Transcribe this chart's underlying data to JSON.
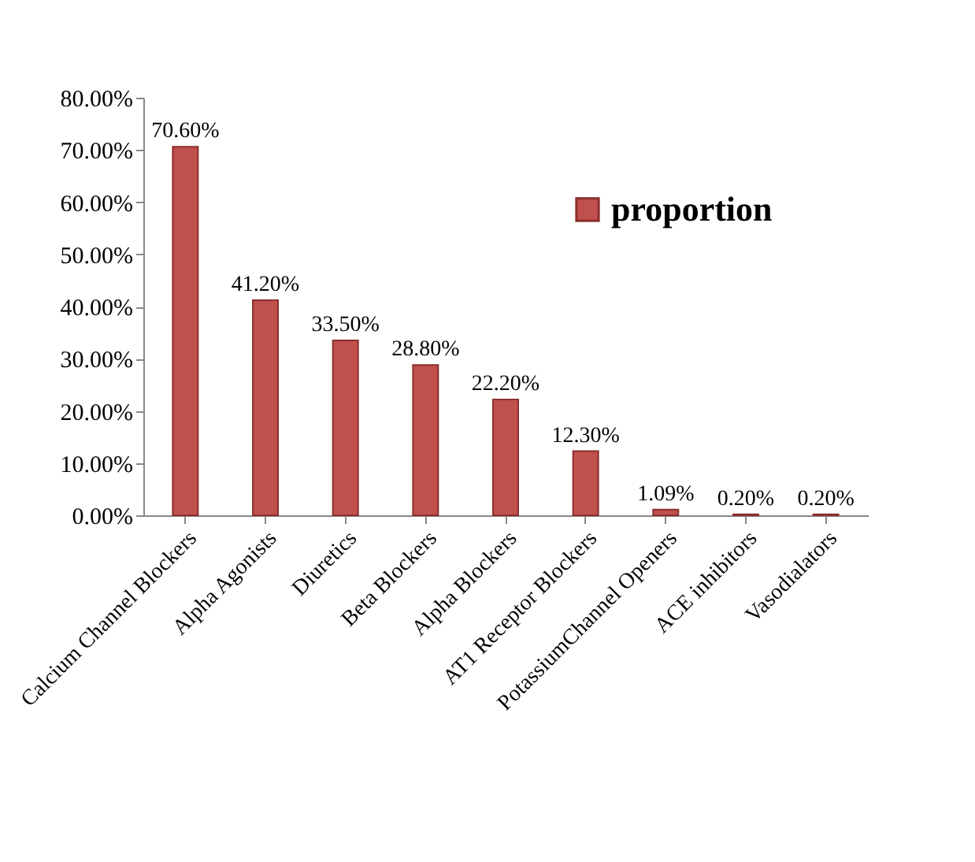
{
  "chart_data": {
    "type": "bar",
    "categories": [
      "Calcium Channel Blockers",
      "Alpha Agonists",
      "Diuretics",
      "Beta Blockers",
      "Alpha Blockers",
      "AT1 Receptor Blockers",
      "PotassiumChannel Openers",
      "ACE inhibitors",
      "Vasodialators"
    ],
    "series": [
      {
        "name": "proportion",
        "color": "#c0504d",
        "values": [
          70.6,
          41.2,
          33.5,
          28.8,
          22.2,
          12.3,
          1.09,
          0.2,
          0.2
        ],
        "value_labels": [
          "70.60%",
          "41.20%",
          "33.50%",
          "28.80%",
          "22.20%",
          "12.30%",
          "1.09%",
          "0.20%",
          "0.20%"
        ]
      }
    ],
    "ylim": [
      0,
      80
    ],
    "yticks": [
      {
        "value": 0,
        "label": "0.00%"
      },
      {
        "value": 10,
        "label": "10.00%"
      },
      {
        "value": 20,
        "label": "20.00%"
      },
      {
        "value": 30,
        "label": "30.00%"
      },
      {
        "value": 40,
        "label": "40.00%"
      },
      {
        "value": 50,
        "label": "50.00%"
      },
      {
        "value": 60,
        "label": "60.00%"
      },
      {
        "value": 70,
        "label": "70.00%"
      },
      {
        "value": 80,
        "label": "80.00%"
      }
    ],
    "grid": false,
    "legend": "top right"
  }
}
